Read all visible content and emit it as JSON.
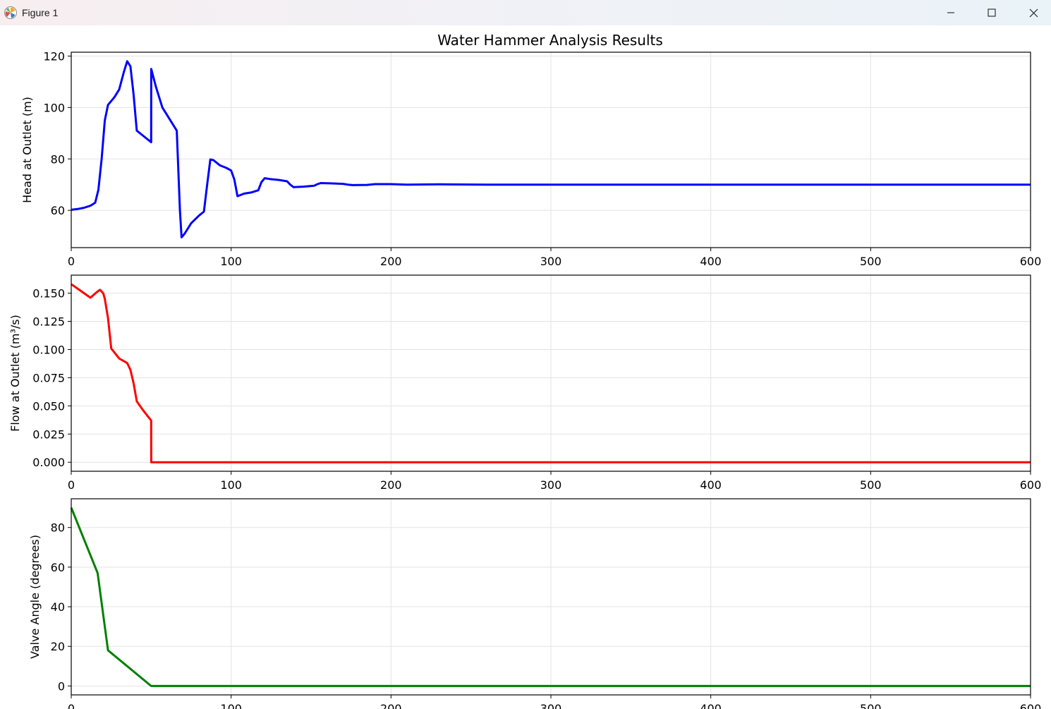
{
  "window": {
    "title": "Figure 1",
    "icon": "matplotlib-icon",
    "controls": [
      "minimize-icon",
      "maximize-icon",
      "close-icon"
    ]
  },
  "figure": {
    "suptitle": "Water Hammer Analysis Results"
  },
  "chart_data": [
    {
      "type": "line",
      "title": "Water Hammer Analysis Results",
      "xlabel": "",
      "ylabel": "Head at Outlet (m)",
      "xlim": [
        0,
        600
      ],
      "ylim": [
        45.5,
        121.5
      ],
      "xticks": [
        0,
        100,
        200,
        300,
        400,
        500,
        600
      ],
      "xtick_labels": [
        "0",
        "100",
        "200",
        "300",
        "400",
        "500",
        "600"
      ],
      "yticks": [
        60,
        80,
        100,
        120
      ],
      "ytick_labels": [
        "60",
        "80",
        "100",
        "120"
      ],
      "grid": true,
      "color": "#0000ff",
      "series": [
        {
          "x": [
            0,
            4,
            8,
            12,
            15,
            17,
            19,
            21,
            23,
            27,
            30,
            33,
            35,
            37,
            39,
            41,
            45,
            50,
            50.01,
            53,
            57,
            60,
            64,
            66,
            68,
            69,
            71,
            75,
            80,
            83,
            85,
            87,
            89,
            93,
            97,
            100,
            102,
            104,
            108,
            113,
            117,
            119,
            121,
            124,
            130,
            135,
            137,
            139,
            145,
            152,
            154,
            156,
            162,
            170,
            173,
            176,
            185,
            190,
            200,
            210,
            230,
            260,
            300,
            400,
            500,
            600
          ],
          "y": [
            60.2,
            60.5,
            61.0,
            61.8,
            63.0,
            68.0,
            80.0,
            95.0,
            101.0,
            104.0,
            107.0,
            114.0,
            118.0,
            116.0,
            105.0,
            91.0,
            89.0,
            86.5,
            115.0,
            108.0,
            100.0,
            97.0,
            93.0,
            91.0,
            60.0,
            49.5,
            51.0,
            55.0,
            58.0,
            59.5,
            70.0,
            79.8,
            79.5,
            77.5,
            76.5,
            75.5,
            72.0,
            65.5,
            66.5,
            67.0,
            67.8,
            71.0,
            72.5,
            72.2,
            71.8,
            71.3,
            70.0,
            69.0,
            69.2,
            69.6,
            70.2,
            70.6,
            70.5,
            70.3,
            70.0,
            69.8,
            69.9,
            70.2,
            70.2,
            70.0,
            70.1,
            70.0,
            70.0,
            70.0,
            70.0,
            70.0
          ]
        }
      ]
    },
    {
      "type": "line",
      "xlabel": "",
      "ylabel": "Flow at Outlet (m³/s)",
      "xlim": [
        0,
        600
      ],
      "ylim": [
        -0.008,
        0.166
      ],
      "xticks": [
        0,
        100,
        200,
        300,
        400,
        500,
        600
      ],
      "xtick_labels": [
        "0",
        "100",
        "200",
        "300",
        "400",
        "500",
        "600"
      ],
      "yticks": [
        0.0,
        0.025,
        0.05,
        0.075,
        0.1,
        0.125,
        0.15
      ],
      "ytick_labels": [
        "0.000",
        "0.025",
        "0.050",
        "0.075",
        "0.100",
        "0.125",
        "0.150"
      ],
      "grid": true,
      "color": "#ff0000",
      "series": [
        {
          "x": [
            0,
            6,
            12,
            16,
            18,
            20,
            21,
            23,
            25,
            30,
            35,
            37,
            39,
            41,
            45,
            50,
            50.01,
            60,
            100,
            200,
            300,
            400,
            500,
            600
          ],
          "y": [
            0.158,
            0.152,
            0.146,
            0.151,
            0.153,
            0.15,
            0.145,
            0.128,
            0.101,
            0.092,
            0.088,
            0.082,
            0.07,
            0.054,
            0.046,
            0.037,
            0.0,
            0.0,
            0.0,
            0.0,
            0.0,
            0.0,
            0.0,
            0.0
          ]
        }
      ]
    },
    {
      "type": "line",
      "xlabel": "",
      "ylabel": "Valve Angle (degrees)",
      "xlim": [
        0,
        600
      ],
      "ylim": [
        -4.5,
        94.5
      ],
      "xticks": [
        0,
        100,
        200,
        300,
        400,
        500,
        600
      ],
      "xtick_labels": [
        "0",
        "100",
        "200",
        "300",
        "400",
        "500",
        "600"
      ],
      "yticks": [
        0,
        20,
        40,
        60,
        80
      ],
      "ytick_labels": [
        "0",
        "20",
        "40",
        "60",
        "80"
      ],
      "grid": true,
      "color": "#008000",
      "series": [
        {
          "x": [
            0,
            16.5,
            23,
            50,
            600
          ],
          "y": [
            90,
            57,
            18,
            0,
            0
          ]
        }
      ]
    }
  ]
}
